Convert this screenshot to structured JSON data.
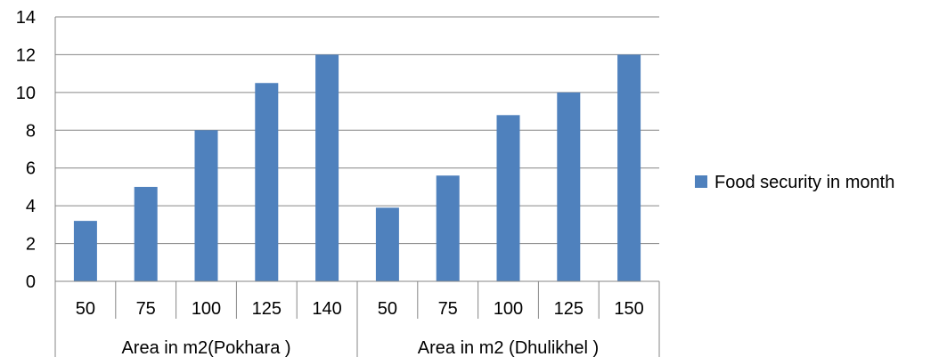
{
  "chart_data": {
    "type": "bar",
    "ylim": [
      0,
      14
    ],
    "y_ticks": [
      "0",
      "2",
      "4",
      "6",
      "8",
      "10",
      "12",
      "14"
    ],
    "grid": "horizontal",
    "legend_position": "right",
    "categories": [
      "50",
      "75",
      "100",
      "125",
      "140",
      "50",
      "75",
      "100",
      "125",
      "150"
    ],
    "groups": [
      {
        "label": "Area in m2(Pokhara )",
        "span": [
          0,
          4
        ]
      },
      {
        "label": "Area in m2 (Dhulikhel )",
        "span": [
          5,
          9
        ]
      }
    ],
    "series": [
      {
        "name": "Food security in month",
        "color": "#4f81bd",
        "values": [
          3.2,
          5,
          8,
          10.5,
          12,
          3.9,
          5.6,
          8.8,
          10,
          12
        ]
      }
    ]
  }
}
